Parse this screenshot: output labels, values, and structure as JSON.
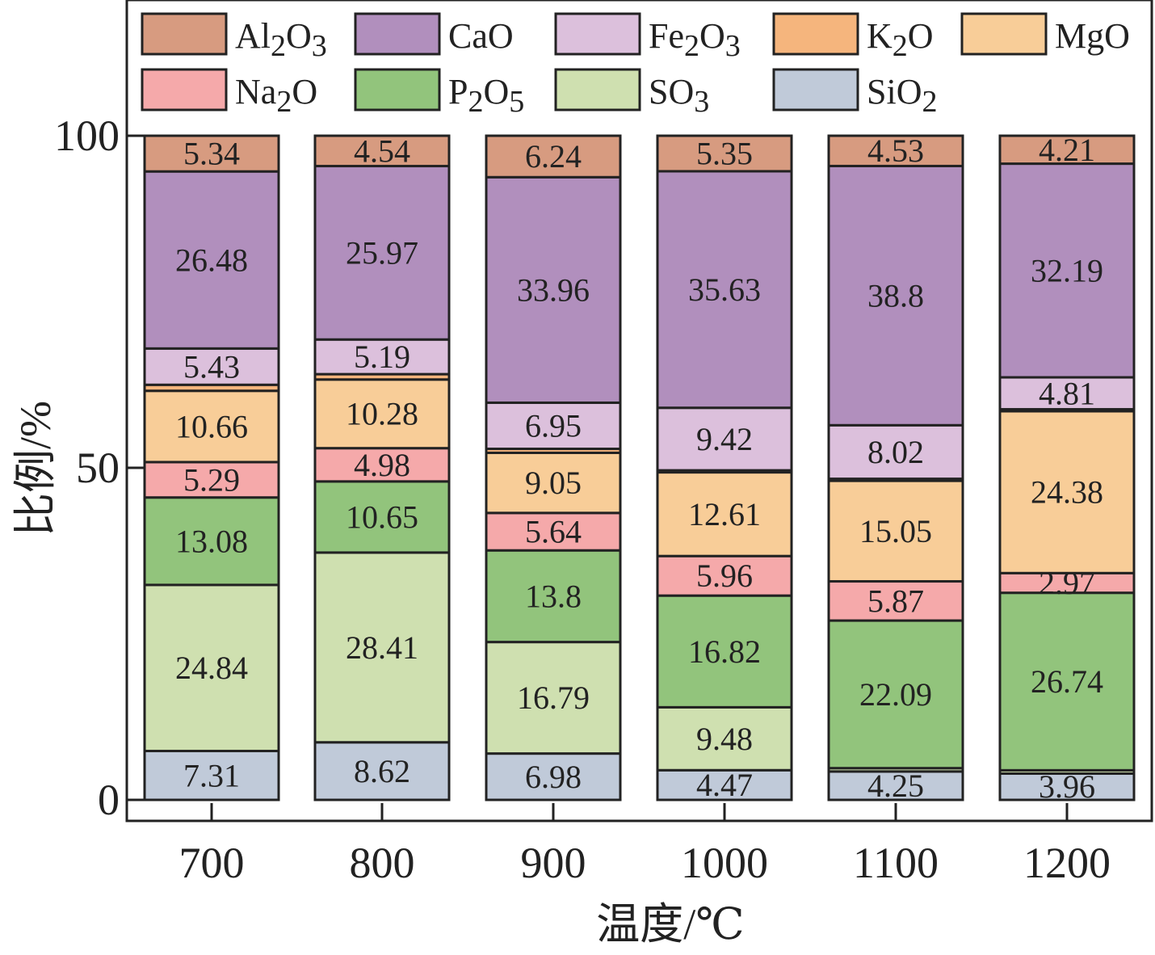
{
  "chart_data": {
    "type": "bar",
    "stacked": true,
    "title": "",
    "xlabel": "温度/℃",
    "ylabel": "比例/%",
    "ylim": [
      0,
      100
    ],
    "yticks": [
      "0",
      "50",
      "100"
    ],
    "categories": [
      "700",
      "800",
      "900",
      "1000",
      "1100",
      "1200"
    ],
    "legend_position": "top",
    "series": [
      {
        "name": "SiO2",
        "display": [
          "SiO",
          "2",
          ""
        ],
        "color": "#c0cad9",
        "values": [
          7.31,
          8.62,
          6.98,
          4.47,
          4.25,
          3.96
        ],
        "labels": [
          "7.31",
          "8.62",
          "6.98",
          "4.47",
          "4.25",
          "3.96"
        ]
      },
      {
        "name": "SO3",
        "display": [
          "SO",
          "3",
          ""
        ],
        "color": "#cfe0b0",
        "values": [
          24.84,
          28.41,
          16.79,
          9.48,
          0.5,
          0.5
        ],
        "labels": [
          "24.84",
          "28.41",
          "16.79",
          "9.48",
          "",
          ""
        ]
      },
      {
        "name": "P2O5",
        "display": [
          "P",
          "2",
          "O",
          "5"
        ],
        "color": "#92c47c",
        "values": [
          13.08,
          10.65,
          13.8,
          16.82,
          22.09,
          26.74
        ],
        "labels": [
          "13.08",
          "10.65",
          "13.8",
          "16.82",
          "22.09",
          "26.74"
        ]
      },
      {
        "name": "Na2O",
        "display": [
          "Na",
          "2",
          "O"
        ],
        "color": "#f5a9aa",
        "values": [
          5.29,
          4.98,
          5.64,
          5.96,
          5.87,
          2.97
        ],
        "labels": [
          "5.29",
          "4.98",
          "5.64",
          "5.96",
          "5.87",
          "2.97"
        ]
      },
      {
        "name": "MgO",
        "display": [
          "MgO"
        ],
        "color": "#f8cd98",
        "values": [
          10.66,
          10.28,
          9.05,
          12.61,
          15.05,
          24.38
        ],
        "labels": [
          "10.66",
          "10.28",
          "9.05",
          "12.61",
          "15.05",
          "24.38"
        ]
      },
      {
        "name": "K2O",
        "display": [
          "K",
          "2",
          "O"
        ],
        "color": "#f5b57d",
        "values": [
          0.9,
          0.8,
          0.6,
          0.3,
          0.3,
          0.3
        ],
        "labels": [
          "",
          "",
          "",
          "",
          "",
          ""
        ]
      },
      {
        "name": "Fe2O3",
        "display": [
          "Fe",
          "2",
          "O",
          "3"
        ],
        "color": "#dcc0dc",
        "values": [
          5.43,
          5.19,
          6.95,
          9.42,
          8.02,
          4.81
        ],
        "labels": [
          "5.43",
          "5.19",
          "6.95",
          "9.42",
          "8.02",
          "4.81"
        ]
      },
      {
        "name": "CaO",
        "display": [
          "CaO"
        ],
        "color": "#b18fbd",
        "values": [
          26.48,
          25.97,
          33.96,
          35.63,
          38.8,
          32.19
        ],
        "labels": [
          "26.48",
          "25.97",
          "33.96",
          "35.63",
          "38.8",
          "32.19"
        ]
      },
      {
        "name": "Al2O3",
        "display": [
          "Al",
          "2",
          "O",
          "3"
        ],
        "color": "#d79b80",
        "values": [
          5.34,
          4.54,
          6.24,
          5.35,
          4.53,
          4.21
        ],
        "labels": [
          "5.34",
          "4.54",
          "6.24",
          "5.35",
          "4.53",
          "4.21"
        ]
      }
    ],
    "legend_order": [
      "Al2O3",
      "CaO",
      "Fe2O3",
      "K2O",
      "MgO",
      "Na2O",
      "P2O5",
      "SO3",
      "SiO2"
    ]
  }
}
